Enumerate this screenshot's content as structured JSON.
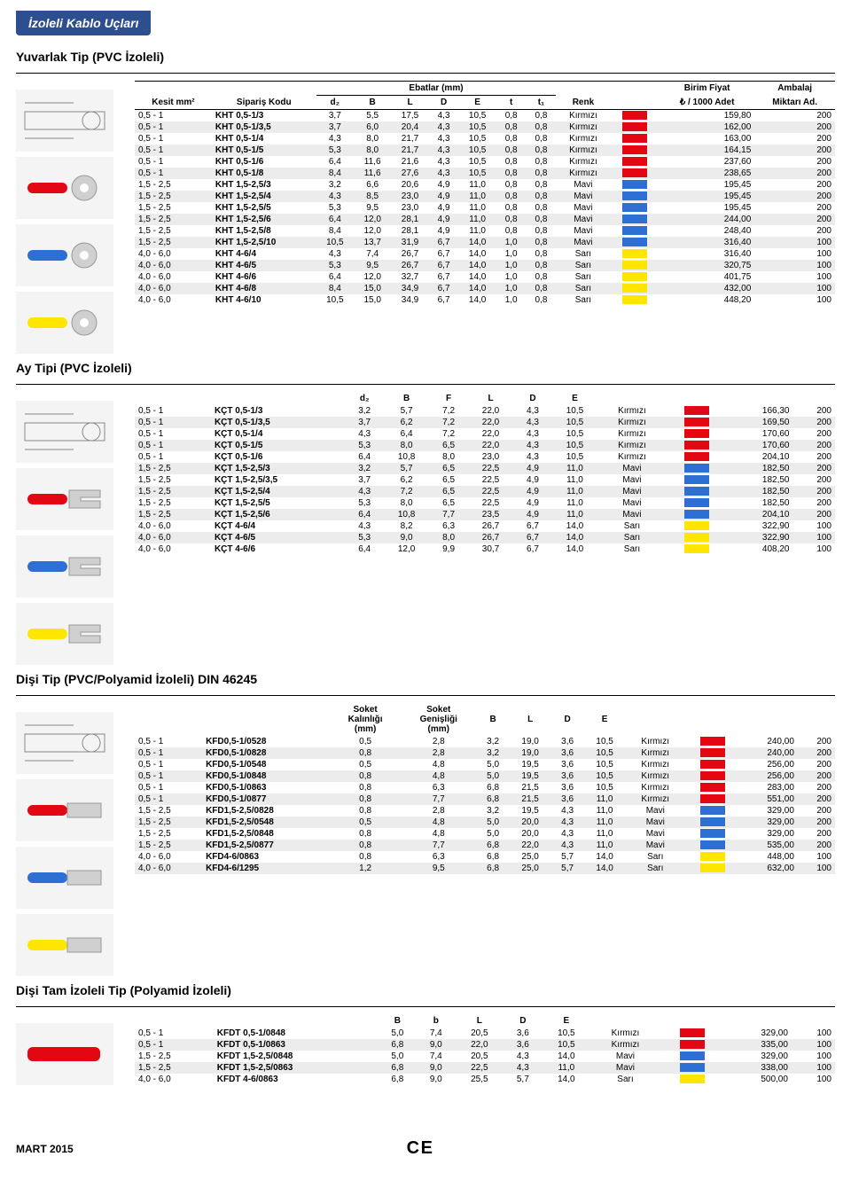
{
  "page": {
    "title_tab": "İzoleli Kablo Uçları",
    "footer_left": "MART 2015",
    "footer_ce": "C E"
  },
  "colors": {
    "red": "#e30613",
    "blue": "#2d6fd2",
    "yellow": "#ffe600",
    "stripe": "#ececec",
    "tab_bg": "#2d4f8f"
  },
  "sections": [
    {
      "title": "Yuvarlak Tip (PVC İzoleli)",
      "header_group": "Ebatlar (mm)",
      "header_right1": "Birim Fiyat",
      "header_right1b": "₺ / 1000 Adet",
      "header_right2": "Ambalaj",
      "header_right2b": "Miktarı Ad.",
      "thumbs": [
        "ring-diagram",
        "ring-red",
        "ring-blue",
        "ring-yellow"
      ],
      "cols": [
        "Kesit mm²",
        "Sipariş Kodu",
        "d₂",
        "B",
        "L",
        "D",
        "E",
        "t",
        "t₁",
        "Renk",
        "",
        "",
        ""
      ],
      "rows": [
        [
          "0,5 - 1",
          "KHT 0,5-1/3",
          "3,7",
          "5,5",
          "17,5",
          "4,3",
          "10,5",
          "0,8",
          "0,8",
          "Kırmızı",
          "red",
          "159,80",
          "200"
        ],
        [
          "0,5 - 1",
          "KHT 0,5-1/3,5",
          "3,7",
          "6,0",
          "20,4",
          "4,3",
          "10,5",
          "0,8",
          "0,8",
          "Kırmızı",
          "red",
          "162,00",
          "200"
        ],
        [
          "0,5 - 1",
          "KHT 0,5-1/4",
          "4,3",
          "8,0",
          "21,7",
          "4,3",
          "10,5",
          "0,8",
          "0,8",
          "Kırmızı",
          "red",
          "163,00",
          "200"
        ],
        [
          "0,5 - 1",
          "KHT 0,5-1/5",
          "5,3",
          "8,0",
          "21,7",
          "4,3",
          "10,5",
          "0,8",
          "0,8",
          "Kırmızı",
          "red",
          "164,15",
          "200"
        ],
        [
          "0,5 - 1",
          "KHT 0,5-1/6",
          "6,4",
          "11,6",
          "21,6",
          "4,3",
          "10,5",
          "0,8",
          "0,8",
          "Kırmızı",
          "red",
          "237,60",
          "200"
        ],
        [
          "0,5 - 1",
          "KHT 0,5-1/8",
          "8,4",
          "11,6",
          "27,6",
          "4,3",
          "10,5",
          "0,8",
          "0,8",
          "Kırmızı",
          "red",
          "238,65",
          "200"
        ],
        [
          "1,5 - 2,5",
          "KHT 1,5-2,5/3",
          "3,2",
          "6,6",
          "20,6",
          "4,9",
          "11,0",
          "0,8",
          "0,8",
          "Mavi",
          "blue",
          "195,45",
          "200"
        ],
        [
          "1,5 - 2,5",
          "KHT 1,5-2,5/4",
          "4,3",
          "8,5",
          "23,0",
          "4,9",
          "11,0",
          "0,8",
          "0,8",
          "Mavi",
          "blue",
          "195,45",
          "200"
        ],
        [
          "1,5 - 2,5",
          "KHT 1,5-2,5/5",
          "5,3",
          "9,5",
          "23,0",
          "4,9",
          "11,0",
          "0,8",
          "0,8",
          "Mavi",
          "blue",
          "195,45",
          "200"
        ],
        [
          "1,5 - 2,5",
          "KHT 1,5-2,5/6",
          "6,4",
          "12,0",
          "28,1",
          "4,9",
          "11,0",
          "0,8",
          "0,8",
          "Mavi",
          "blue",
          "244,00",
          "200"
        ],
        [
          "1,5 - 2,5",
          "KHT 1,5-2,5/8",
          "8,4",
          "12,0",
          "28,1",
          "4,9",
          "11,0",
          "0,8",
          "0,8",
          "Mavi",
          "blue",
          "248,40",
          "200"
        ],
        [
          "1,5 - 2,5",
          "KHT 1,5-2,5/10",
          "10,5",
          "13,7",
          "31,9",
          "6,7",
          "14,0",
          "1,0",
          "0,8",
          "Mavi",
          "blue",
          "316,40",
          "100"
        ],
        [
          "4,0 - 6,0",
          "KHT 4-6/4",
          "4,3",
          "7,4",
          "26,7",
          "6,7",
          "14,0",
          "1,0",
          "0,8",
          "Sarı",
          "yellow",
          "316,40",
          "100"
        ],
        [
          "4,0 - 6,0",
          "KHT 4-6/5",
          "5,3",
          "9,5",
          "26,7",
          "6,7",
          "14,0",
          "1,0",
          "0,8",
          "Sarı",
          "yellow",
          "320,75",
          "100"
        ],
        [
          "4,0 - 6,0",
          "KHT 4-6/6",
          "6,4",
          "12,0",
          "32,7",
          "6,7",
          "14,0",
          "1,0",
          "0,8",
          "Sarı",
          "yellow",
          "401,75",
          "100"
        ],
        [
          "4,0 - 6,0",
          "KHT 4-6/8",
          "8,4",
          "15,0",
          "34,9",
          "6,7",
          "14,0",
          "1,0",
          "0,8",
          "Sarı",
          "yellow",
          "432,00",
          "100"
        ],
        [
          "4,0 - 6,0",
          "KHT 4-6/10",
          "10,5",
          "15,0",
          "34,9",
          "6,7",
          "14,0",
          "1,0",
          "0,8",
          "Sarı",
          "yellow",
          "448,20",
          "100"
        ]
      ]
    },
    {
      "title": "Ay Tipi (PVC İzoleli)",
      "thumbs": [
        "fork-diagram",
        "fork-red",
        "fork-blue",
        "fork-yellow"
      ],
      "cols": [
        "",
        "",
        "d₂",
        "B",
        "F",
        "L",
        "D",
        "E",
        "",
        "",
        "",
        ""
      ],
      "rows": [
        [
          "0,5 - 1",
          "KÇT 0,5-1/3",
          "3,2",
          "5,7",
          "7,2",
          "22,0",
          "4,3",
          "10,5",
          "Kırmızı",
          "red",
          "166,30",
          "200"
        ],
        [
          "0,5 - 1",
          "KÇT 0,5-1/3,5",
          "3,7",
          "6,2",
          "7,2",
          "22,0",
          "4,3",
          "10,5",
          "Kırmızı",
          "red",
          "169,50",
          "200"
        ],
        [
          "0,5 - 1",
          "KÇT 0,5-1/4",
          "4,3",
          "6,4",
          "7,2",
          "22,0",
          "4,3",
          "10,5",
          "Kırmızı",
          "red",
          "170,60",
          "200"
        ],
        [
          "0,5 - 1",
          "KÇT 0,5-1/5",
          "5,3",
          "8,0",
          "6,5",
          "22,0",
          "4,3",
          "10,5",
          "Kırmızı",
          "red",
          "170,60",
          "200"
        ],
        [
          "0,5 - 1",
          "KÇT 0,5-1/6",
          "6,4",
          "10,8",
          "8,0",
          "23,0",
          "4,3",
          "10,5",
          "Kırmızı",
          "red",
          "204,10",
          "200"
        ],
        [
          "1,5 - 2,5",
          "KÇT 1,5-2,5/3",
          "3,2",
          "5,7",
          "6,5",
          "22,5",
          "4,9",
          "11,0",
          "Mavi",
          "blue",
          "182,50",
          "200"
        ],
        [
          "1,5 - 2,5",
          "KÇT 1,5-2,5/3,5",
          "3,7",
          "6,2",
          "6,5",
          "22,5",
          "4,9",
          "11,0",
          "Mavi",
          "blue",
          "182,50",
          "200"
        ],
        [
          "1,5 - 2,5",
          "KÇT 1,5-2,5/4",
          "4,3",
          "7,2",
          "6,5",
          "22,5",
          "4,9",
          "11,0",
          "Mavi",
          "blue",
          "182,50",
          "200"
        ],
        [
          "1,5 - 2,5",
          "KÇT 1,5-2,5/5",
          "5,3",
          "8,0",
          "6,5",
          "22,5",
          "4,9",
          "11,0",
          "Mavi",
          "blue",
          "182,50",
          "200"
        ],
        [
          "1,5 - 2,5",
          "KÇT 1,5-2,5/6",
          "6,4",
          "10,8",
          "7,7",
          "23,5",
          "4,9",
          "11,0",
          "Mavi",
          "blue",
          "204,10",
          "200"
        ],
        [
          "4,0 - 6,0",
          "KÇT 4-6/4",
          "4,3",
          "8,2",
          "6,3",
          "26,7",
          "6,7",
          "14,0",
          "Sarı",
          "yellow",
          "322,90",
          "100"
        ],
        [
          "4,0 - 6,0",
          "KÇT 4-6/5",
          "5,3",
          "9,0",
          "8,0",
          "26,7",
          "6,7",
          "14,0",
          "Sarı",
          "yellow",
          "322,90",
          "100"
        ],
        [
          "4,0 - 6,0",
          "KÇT 4-6/6",
          "6,4",
          "12,0",
          "9,9",
          "30,7",
          "6,7",
          "14,0",
          "Sarı",
          "yellow",
          "408,20",
          "100"
        ]
      ]
    },
    {
      "title": "Dişi Tip (PVC/Polyamid İzoleli) DIN 46245",
      "thumbs": [
        "female-diagram",
        "female-red",
        "female-blue",
        "female-yellow"
      ],
      "sub_header1": "Soket",
      "sub_header1b": "Kalınlığı",
      "sub_header1c": "(mm)",
      "sub_header2": "Soket",
      "sub_header2b": "Genişliği",
      "sub_header2c": "(mm)",
      "cols": [
        "",
        "",
        "",
        "",
        "B",
        "L",
        "D",
        "E",
        "",
        "",
        "",
        ""
      ],
      "rows": [
        [
          "0,5 - 1",
          "KFD0,5-1/0528",
          "0,5",
          "2,8",
          "3,2",
          "19,0",
          "3,6",
          "10,5",
          "Kırmızı",
          "red",
          "240,00",
          "200"
        ],
        [
          "0,5 - 1",
          "KFD0,5-1/0828",
          "0,8",
          "2,8",
          "3,2",
          "19,0",
          "3,6",
          "10,5",
          "Kırmızı",
          "red",
          "240,00",
          "200"
        ],
        [
          "0,5 - 1",
          "KFD0,5-1/0548",
          "0,5",
          "4,8",
          "5,0",
          "19,5",
          "3,6",
          "10,5",
          "Kırmızı",
          "red",
          "256,00",
          "200"
        ],
        [
          "0,5 - 1",
          "KFD0,5-1/0848",
          "0,8",
          "4,8",
          "5,0",
          "19,5",
          "3,6",
          "10,5",
          "Kırmızı",
          "red",
          "256,00",
          "200"
        ],
        [
          "0,5 - 1",
          "KFD0,5-1/0863",
          "0,8",
          "6,3",
          "6,8",
          "21,5",
          "3,6",
          "10,5",
          "Kırmızı",
          "red",
          "283,00",
          "200"
        ],
        [
          "0,5 - 1",
          "KFD0,5-1/0877",
          "0,8",
          "7,7",
          "6,8",
          "21,5",
          "3,6",
          "11,0",
          "Kırmızı",
          "red",
          "551,00",
          "200"
        ],
        [
          "1,5 - 2,5",
          "KFD1,5-2,5/0828",
          "0,8",
          "2,8",
          "3,2",
          "19,5",
          "4,3",
          "11,0",
          "Mavi",
          "blue",
          "329,00",
          "200"
        ],
        [
          "1,5 - 2,5",
          "KFD1,5-2,5/0548",
          "0,5",
          "4,8",
          "5,0",
          "20,0",
          "4,3",
          "11,0",
          "Mavi",
          "blue",
          "329,00",
          "200"
        ],
        [
          "1,5 - 2,5",
          "KFD1,5-2,5/0848",
          "0,8",
          "4,8",
          "5,0",
          "20,0",
          "4,3",
          "11,0",
          "Mavi",
          "blue",
          "329,00",
          "200"
        ],
        [
          "1,5 - 2,5",
          "KFD1,5-2,5/0877",
          "0,8",
          "7,7",
          "6,8",
          "22,0",
          "4,3",
          "11,0",
          "Mavi",
          "blue",
          "535,00",
          "200"
        ],
        [
          "4,0 - 6,0",
          "KFD4-6/0863",
          "0,8",
          "6,3",
          "6,8",
          "25,0",
          "5,7",
          "14,0",
          "Sarı",
          "yellow",
          "448,00",
          "100"
        ],
        [
          "4,0 - 6,0",
          "KFD4-6/1295",
          "1,2",
          "9,5",
          "6,8",
          "25,0",
          "5,7",
          "14,0",
          "Sarı",
          "yellow",
          "632,00",
          "100"
        ]
      ]
    },
    {
      "title": "Dişi Tam İzoleli Tip (Polyamid İzoleli)",
      "thumbs": [
        "full-female-red"
      ],
      "cols": [
        "",
        "",
        "B",
        "b",
        "L",
        "D",
        "E",
        "",
        "",
        "",
        ""
      ],
      "rows": [
        [
          "0,5 - 1",
          "KFDT 0,5-1/0848",
          "5,0",
          "7,4",
          "20,5",
          "3,6",
          "10,5",
          "Kırmızı",
          "red",
          "329,00",
          "100"
        ],
        [
          "0,5 - 1",
          "KFDT 0,5-1/0863",
          "6,8",
          "9,0",
          "22,0",
          "3,6",
          "10,5",
          "Kırmızı",
          "red",
          "335,00",
          "100"
        ],
        [
          "1,5 - 2,5",
          "KFDT 1,5-2,5/0848",
          "5,0",
          "7,4",
          "20,5",
          "4,3",
          "14,0",
          "Mavi",
          "blue",
          "329,00",
          "100"
        ],
        [
          "1,5 - 2,5",
          "KFDT 1,5-2,5/0863",
          "6,8",
          "9,0",
          "22,5",
          "4,3",
          "11,0",
          "Mavi",
          "blue",
          "338,00",
          "100"
        ],
        [
          "4,0 - 6,0",
          "KFDT 4-6/0863",
          "6,8",
          "9,0",
          "25,5",
          "5,7",
          "14,0",
          "Sarı",
          "yellow",
          "500,00",
          "100"
        ]
      ]
    }
  ]
}
